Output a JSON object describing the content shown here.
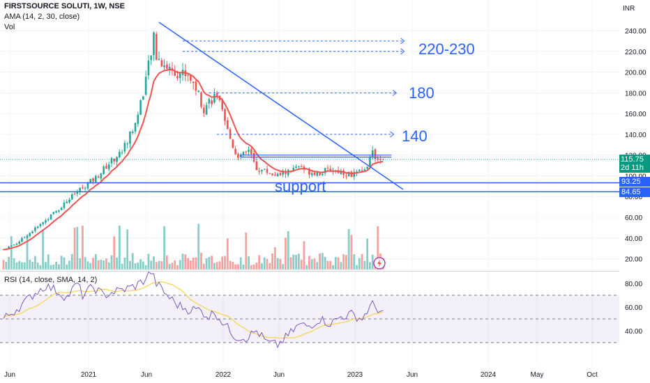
{
  "header": {
    "symbol": "FIRSTSOURCE SOLUTI, 1W, NSE",
    "indicator": "AMA (14, 2, 30, close)",
    "volume_label": "Vol",
    "currency": "INR"
  },
  "rsi_label": "RSI (14, close, SMA, 14, 2)",
  "badges": {
    "last_price": "115.75",
    "countdown": "2d 11h",
    "support_top": "93.25",
    "support_bottom": "84.65"
  },
  "annotations": {
    "target_high": "220-230",
    "target_mid": "180",
    "target_low": "140",
    "support": "support"
  },
  "colors": {
    "up": "#26a69a",
    "down": "#ef5350",
    "trendline": "#2962ff",
    "ama": "#ef5350",
    "ama_up": "#43a047",
    "rsi": "#7e57c2",
    "rsi_ma": "#f2d860"
  },
  "chart_data": [
    {
      "type": "candlestick",
      "price_axis": {
        "ticks": [
          20,
          40,
          60,
          80,
          100,
          120,
          140,
          160,
          180,
          200,
          220,
          240
        ],
        "range": [
          10,
          250
        ]
      },
      "time_axis": [
        "Jun",
        "2021",
        "Jun",
        "2022",
        "Jun",
        "2023",
        "Jun",
        "2024",
        "May",
        "Oct"
      ],
      "price_path": [
        [
          0,
          29
        ],
        [
          5,
          35
        ],
        [
          10,
          45
        ],
        [
          15,
          55
        ],
        [
          20,
          66
        ],
        [
          25,
          78
        ],
        [
          30,
          89
        ],
        [
          35,
          98
        ],
        [
          40,
          112
        ],
        [
          45,
          124
        ],
        [
          50,
          150
        ],
        [
          53,
          182
        ],
        [
          55,
          205
        ],
        [
          57,
          232
        ],
        [
          58,
          215
        ],
        [
          62,
          205
        ],
        [
          66,
          200
        ],
        [
          70,
          198
        ],
        [
          73,
          185
        ],
        [
          76,
          165
        ],
        [
          78,
          172
        ],
        [
          81,
          178
        ],
        [
          84,
          150
        ],
        [
          88,
          122
        ],
        [
          90,
          118
        ],
        [
          93,
          124
        ],
        [
          96,
          107
        ],
        [
          100,
          104
        ],
        [
          104,
          100
        ],
        [
          108,
          104
        ],
        [
          112,
          108
        ],
        [
          116,
          104
        ],
        [
          120,
          103
        ],
        [
          124,
          106
        ],
        [
          128,
          104
        ],
        [
          132,
          101
        ],
        [
          136,
          104
        ],
        [
          138,
          112
        ],
        [
          140,
          121
        ],
        [
          142,
          118
        ],
        [
          144,
          116
        ]
      ],
      "last": 115.75,
      "trendline": [
        [
          228,
          32
        ],
        [
          578,
          272
        ]
      ],
      "support_levels": [
        93.25,
        84.65
      ],
      "resistance_box": [
        118,
        120
      ],
      "targets": [
        230,
        220,
        180,
        140
      ]
    },
    {
      "type": "line",
      "name": "RSI",
      "ticks": [
        40,
        60,
        80
      ],
      "bands": [
        30,
        50,
        70
      ],
      "rsi_path": [
        [
          0,
          50
        ],
        [
          6,
          60
        ],
        [
          12,
          72
        ],
        [
          16,
          78
        ],
        [
          20,
          74
        ],
        [
          24,
          68
        ],
        [
          28,
          80
        ],
        [
          30,
          70
        ],
        [
          34,
          77
        ],
        [
          38,
          70
        ],
        [
          42,
          73
        ],
        [
          46,
          75
        ],
        [
          50,
          78
        ],
        [
          53,
          82
        ],
        [
          56,
          90
        ],
        [
          58,
          80
        ],
        [
          62,
          70
        ],
        [
          66,
          62
        ],
        [
          70,
          58
        ],
        [
          74,
          58
        ],
        [
          78,
          52
        ],
        [
          80,
          56
        ],
        [
          84,
          45
        ],
        [
          88,
          35
        ],
        [
          92,
          34
        ],
        [
          96,
          40
        ],
        [
          100,
          30
        ],
        [
          104,
          28
        ],
        [
          108,
          36
        ],
        [
          112,
          45
        ],
        [
          116,
          44
        ],
        [
          120,
          50
        ],
        [
          124,
          46
        ],
        [
          128,
          52
        ],
        [
          132,
          54
        ],
        [
          136,
          50
        ],
        [
          138,
          57
        ],
        [
          140,
          62
        ],
        [
          144,
          55
        ]
      ]
    }
  ]
}
